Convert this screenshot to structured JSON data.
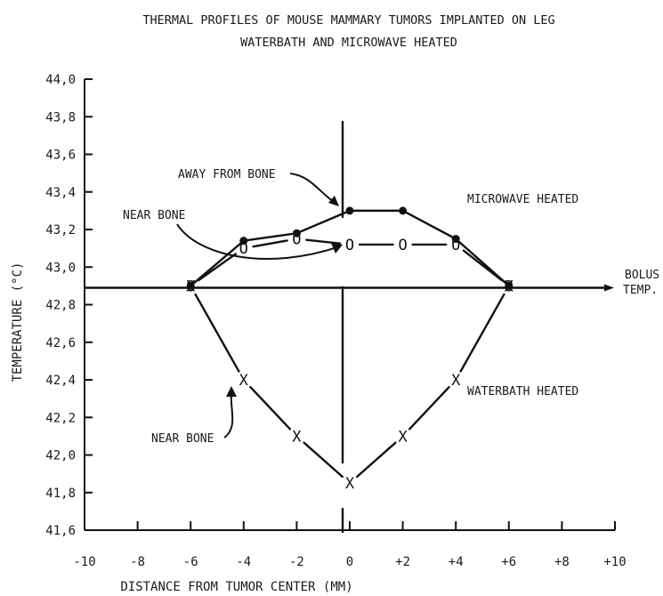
{
  "chart_data": {
    "type": "line",
    "title": "THERMAL PROFILES OF MOUSE MAMMARY TUMORS IMPLANTED ON LEG",
    "subtitle": "WATERBATH AND MICROWAVE HEATED",
    "xlabel": "DISTANCE FROM TUMOR CENTER (MM)",
    "ylabel": "TEMPERATURE (°C)",
    "xlim": [
      -10,
      10
    ],
    "ylim": [
      41.6,
      44.0
    ],
    "x_ticks": [
      -10,
      -8,
      -6,
      -4,
      -2,
      0,
      2,
      4,
      6,
      8,
      10
    ],
    "x_tick_labels": [
      "-10",
      "-8",
      "-6",
      "-4",
      "-2",
      "0",
      "+2",
      "+4",
      "+6",
      "+8",
      "+10"
    ],
    "y_ticks": [
      41.6,
      41.8,
      42.0,
      42.2,
      42.4,
      42.6,
      42.8,
      43.0,
      43.2,
      43.4,
      43.6,
      43.8,
      44.0
    ],
    "y_tick_labels": [
      "41,6",
      "41,8",
      "42,0",
      "42,2",
      "42,4",
      "42,6",
      "42,8",
      "43,0",
      "43,2",
      "43,4",
      "43,6",
      "43,8",
      "44,0"
    ],
    "grid": false,
    "series": [
      {
        "marker": "filled-dot",
        "x": [
          -6,
          -4,
          -2,
          0,
          2,
          4,
          6
        ],
        "y": [
          42.9,
          43.14,
          43.18,
          43.3,
          43.3,
          43.15,
          42.9
        ]
      },
      {
        "marker": "O",
        "x": [
          -6,
          -4,
          -2,
          0,
          2,
          4,
          6
        ],
        "y": [
          42.9,
          43.1,
          43.15,
          43.12,
          43.12,
          43.12,
          42.9
        ]
      },
      {
        "marker": "X",
        "x": [
          -6,
          -4,
          -2,
          0,
          2,
          4,
          6
        ],
        "y": [
          42.9,
          42.4,
          42.1,
          41.85,
          42.1,
          42.4,
          42.9
        ]
      }
    ],
    "reference_line": {
      "y": 42.89,
      "label_line1": "BOLUS",
      "label_line2": "TEMP."
    },
    "annotations": {
      "away_from_bone": "AWAY FROM BONE",
      "near_bone_top": "NEAR BONE",
      "microwave_heated": "MICROWAVE HEATED",
      "waterbath_heated": "WATERBATH HEATED",
      "near_bone_bottom": "NEAR BONE"
    }
  }
}
